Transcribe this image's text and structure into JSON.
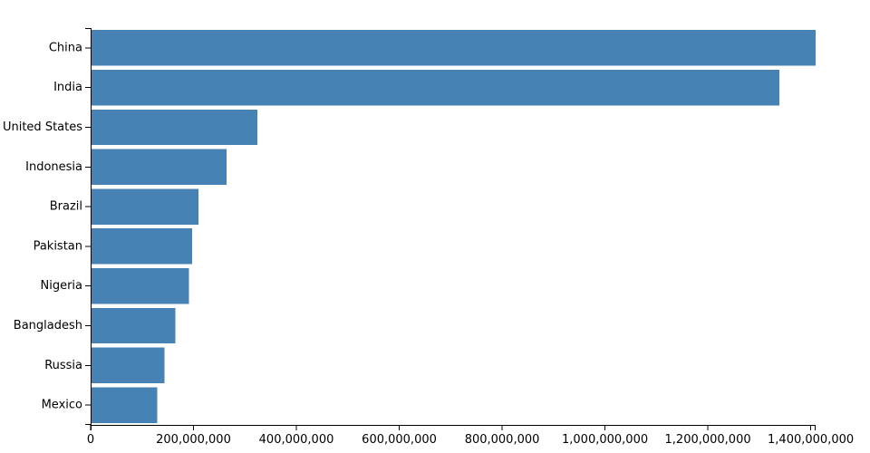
{
  "chart_data": {
    "type": "bar",
    "orientation": "horizontal",
    "categories": [
      "China",
      "India",
      "United States",
      "Indonesia",
      "Brazil",
      "Pakistan",
      "Nigeria",
      "Bangladesh",
      "Russia",
      "Mexico"
    ],
    "values": [
      1409517397,
      1339180127,
      324459463,
      263991379,
      209288278,
      197015955,
      190886311,
      164669751,
      143989754,
      129163276
    ],
    "title": "",
    "xlabel": "",
    "ylabel": "",
    "xlim": [
      0,
      1409517397
    ],
    "x_ticks": [
      0,
      200000000,
      400000000,
      600000000,
      800000000,
      1000000000,
      1200000000,
      1400000000
    ],
    "x_tick_labels": [
      "0",
      "200,000,000",
      "400,000,000",
      "600,000,000",
      "800,000,000",
      "1,000,000,000",
      "1,200,000,000",
      "1,400,000,000"
    ],
    "bar_color": "#4682b4",
    "grid": false,
    "legend": "none"
  }
}
